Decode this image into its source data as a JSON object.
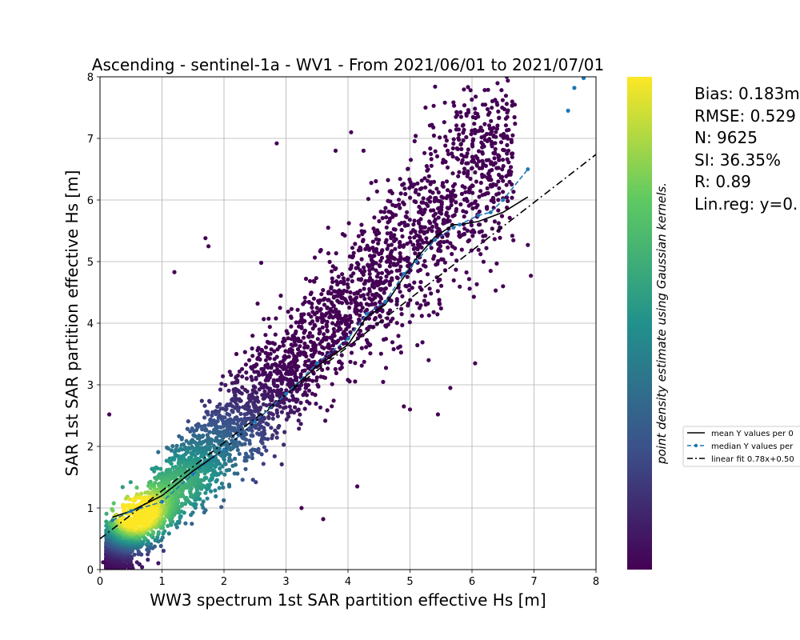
{
  "chart_data": {
    "type": "scatter",
    "title": "Ascending - sentinel-1a - WV1 - From 2021/06/01 to 2021/07/01",
    "xlabel": "WW3 spectrum 1st SAR partition effective Hs [m]",
    "ylabel": "SAR 1st SAR partition effective Hs [m]",
    "xlim": [
      0,
      8
    ],
    "ylim": [
      0,
      8
    ],
    "xticks": [
      "0",
      "1",
      "2",
      "3",
      "4",
      "5",
      "6",
      "7",
      "8"
    ],
    "yticks": [
      "0",
      "1",
      "2",
      "3",
      "4",
      "5",
      "6",
      "7",
      "8"
    ],
    "grid": true,
    "colorbar_label": "point density estimate using Gaussian kernels.",
    "colormap": [
      "#440154",
      "#3b528b",
      "#21918c",
      "#5ec962",
      "#fde725"
    ],
    "stats_lines": [
      "Bias: 0.183m",
      "RMSE: 0.529",
      "N: 9625",
      "SI: 36.35%",
      "R: 0.89",
      "Lin.reg: y=0."
    ],
    "legend": {
      "placement": "right",
      "entries": [
        {
          "label": "mean Y values per 0",
          "style": "solid",
          "color": "#000000"
        },
        {
          "label": "median Y values per",
          "style": "dashed-dot-markers",
          "color": "#1f77b4"
        },
        {
          "label": "linear fit 0.78x+0.50",
          "style": "dashdot",
          "color": "#000000"
        }
      ]
    },
    "mean_line": {
      "x": [
        0.2,
        0.5,
        1.0,
        1.5,
        2.0,
        2.5,
        3.0,
        3.5,
        4.0,
        4.3,
        4.6,
        4.9,
        5.1,
        5.4,
        5.7,
        5.8,
        6.1,
        6.5,
        6.9
      ],
      "y": [
        0.85,
        0.95,
        1.2,
        1.6,
        1.95,
        2.4,
        2.85,
        3.3,
        3.65,
        4.1,
        4.3,
        4.75,
        5.05,
        5.4,
        5.6,
        5.6,
        5.65,
        5.8,
        6.05
      ]
    },
    "median_line": {
      "x": [
        0.2,
        0.5,
        1.0,
        1.5,
        2.0,
        2.5,
        3.0,
        3.5,
        4.0,
        4.3,
        4.6,
        4.9,
        5.1,
        5.4,
        5.7,
        5.8,
        6.1,
        6.3,
        6.5,
        6.9
      ],
      "y": [
        0.8,
        0.95,
        1.1,
        1.55,
        1.95,
        2.4,
        2.85,
        3.35,
        3.75,
        4.15,
        4.35,
        4.8,
        5.0,
        5.35,
        5.55,
        5.6,
        5.75,
        5.8,
        6.0,
        6.5
      ]
    },
    "fit_line": {
      "slope": 0.78,
      "intercept": 0.5
    },
    "scatter_outliers": {
      "x": [
        2.85,
        4.05,
        4.25,
        3.8,
        5.25,
        7.55,
        7.65,
        7.8,
        6.95,
        6.9,
        6.65,
        5.45,
        5.3,
        6.05,
        5.65,
        2.6,
        3.6,
        4.15,
        1.2,
        1.7,
        1.75,
        0.15,
        0.05,
        6.5,
        6.3,
        4.9,
        5.0,
        2.2,
        3.25
      ],
      "y": [
        6.92,
        7.1,
        6.8,
        6.8,
        7.5,
        7.45,
        7.82,
        7.98,
        4.77,
        5.27,
        5.42,
        2.52,
        3.4,
        3.35,
        2.95,
        4.98,
        0.82,
        1.35,
        4.83,
        5.38,
        5.25,
        2.52,
        0.12,
        4.6,
        4.85,
        2.65,
        2.6,
        3.5,
        1.0
      ]
    }
  }
}
